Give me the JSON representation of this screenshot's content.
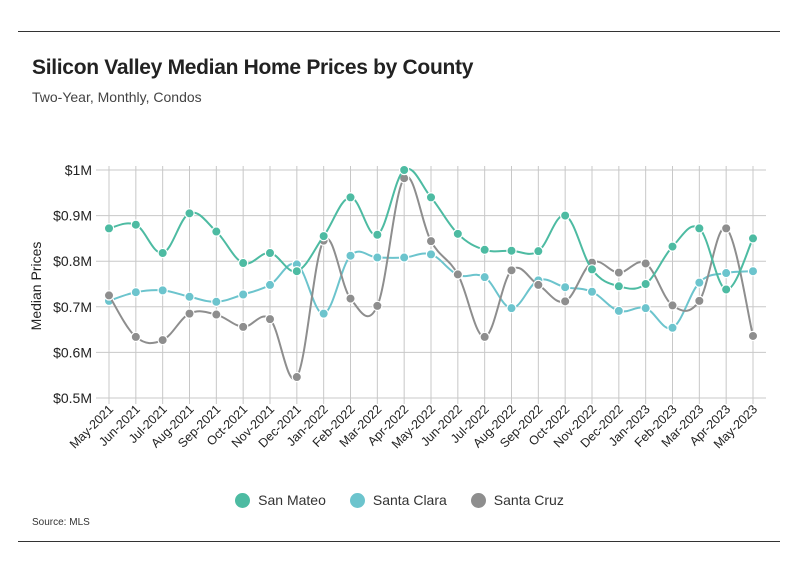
{
  "title": "Silicon Valley Median Home Prices by County",
  "subtitle": "Two-Year, Monthly, Condos",
  "source": "Source: MLS",
  "chart_data": {
    "type": "line",
    "title": "Silicon Valley Median Home Prices by County",
    "subtitle": "Two-Year, Monthly, Condos",
    "xlabel": "",
    "ylabel": "Median Prices",
    "ylim": [
      0.5,
      1.0
    ],
    "yticks": [
      1.0,
      0.9,
      0.8,
      0.7,
      0.6,
      0.5
    ],
    "ytick_labels": [
      "$1M",
      "$0.9M",
      "$0.8M",
      "$0.7M",
      "$0.6M",
      "$0.5M"
    ],
    "grid": true,
    "legend": "bottom",
    "categories": [
      "May-2021",
      "Jun-2021",
      "Jul-2021",
      "Aug-2021",
      "Sep-2021",
      "Oct-2021",
      "Nov-2021",
      "Dec-2021",
      "Jan-2022",
      "Feb-2022",
      "Mar-2022",
      "Apr-2022",
      "May-2022",
      "Jun-2022",
      "Jul-2022",
      "Aug-2022",
      "Sep-2022",
      "Oct-2022",
      "Nov-2022",
      "Dec-2022",
      "Jan-2023",
      "Feb-2023",
      "Mar-2023",
      "Apr-2023",
      "May-2023"
    ],
    "series": [
      {
        "name": "San Mateo",
        "color": "#4dbba2",
        "values": [
          0.872,
          0.88,
          0.818,
          0.905,
          0.865,
          0.796,
          0.818,
          0.778,
          0.855,
          0.94,
          0.858,
          1.0,
          0.94,
          0.86,
          0.825,
          0.823,
          0.822,
          0.9,
          0.782,
          0.745,
          0.75,
          0.832,
          0.872,
          0.738,
          0.85
        ]
      },
      {
        "name": "Santa Clara",
        "color": "#6cc4cd",
        "values": [
          0.713,
          0.732,
          0.736,
          0.722,
          0.711,
          0.727,
          0.748,
          0.793,
          0.685,
          0.812,
          0.808,
          0.808,
          0.815,
          0.77,
          0.765,
          0.697,
          0.758,
          0.743,
          0.733,
          0.691,
          0.697,
          0.654,
          0.753,
          0.774,
          0.778
        ]
      },
      {
        "name": "Santa Cruz",
        "color": "#8e8e8e",
        "values": [
          0.725,
          0.634,
          0.627,
          0.685,
          0.683,
          0.656,
          0.673,
          0.546,
          0.845,
          0.718,
          0.702,
          0.982,
          0.844,
          0.771,
          0.634,
          0.78,
          0.748,
          0.712,
          0.797,
          0.775,
          0.795,
          0.703,
          0.713,
          0.872,
          0.636
        ]
      }
    ]
  }
}
